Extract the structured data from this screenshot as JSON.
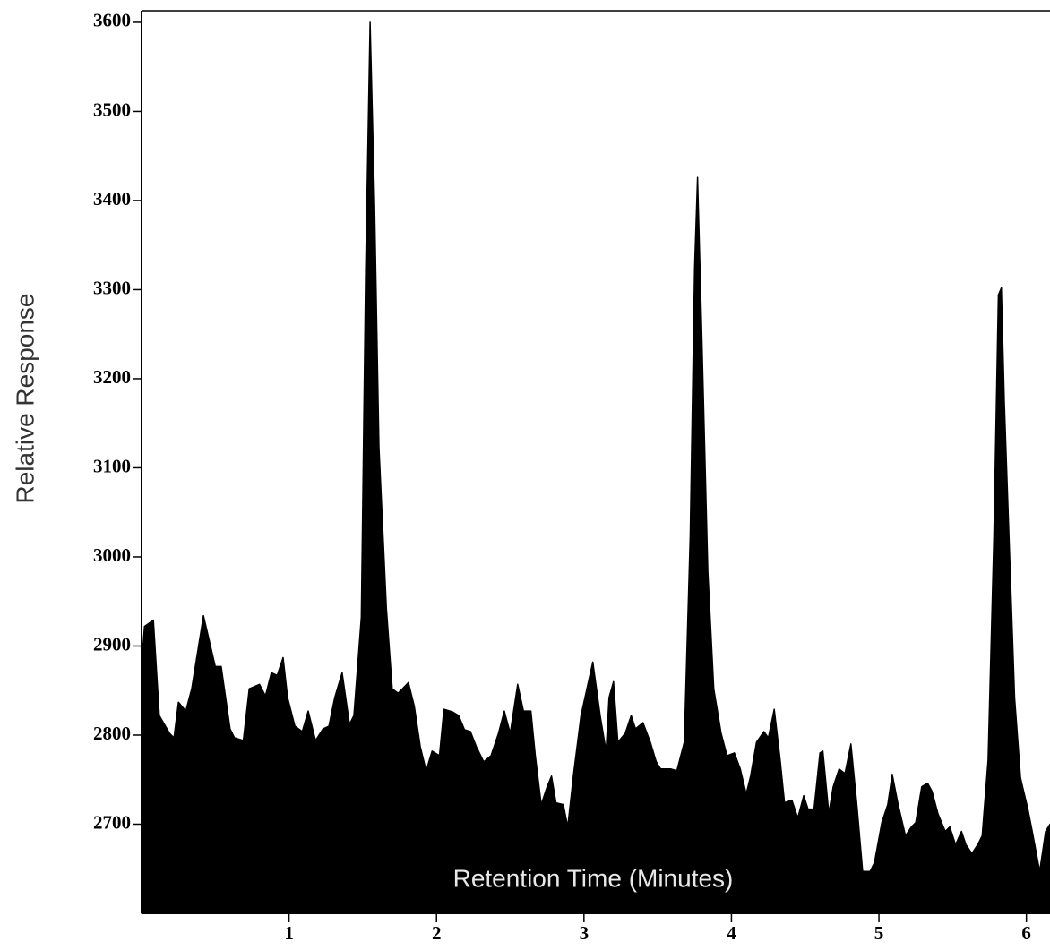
{
  "chart_data": {
    "type": "area",
    "x_label": "Retention Time (Minutes)",
    "y_label": "Relative Response",
    "color": "#000000",
    "xlim": [
      0,
      6.16
    ],
    "ylim": [
      2600,
      3613
    ],
    "xticks": [
      1,
      2,
      3,
      4,
      5,
      6
    ],
    "yticks": [
      2700,
      2800,
      2900,
      3000,
      3100,
      3200,
      3300,
      3400,
      3500,
      3600
    ],
    "x": [
      0,
      0.02,
      0.08,
      0.12,
      0.19,
      0.22,
      0.25,
      0.3,
      0.34,
      0.42,
      0.5,
      0.54,
      0.6,
      0.63,
      0.69,
      0.73,
      0.8,
      0.84,
      0.88,
      0.92,
      0.96,
      0.99,
      1.04,
      1.09,
      1.13,
      1.18,
      1.23,
      1.27,
      1.31,
      1.36,
      1.41,
      1.44,
      1.49,
      1.52,
      1.55,
      1.58,
      1.61,
      1.66,
      1.7,
      1.74,
      1.81,
      1.85,
      1.89,
      1.93,
      1.97,
      2.02,
      2.05,
      2.11,
      2.15,
      2.19,
      2.23,
      2.27,
      2.32,
      2.37,
      2.42,
      2.46,
      2.5,
      2.55,
      2.59,
      2.64,
      2.67,
      2.71,
      2.75,
      2.78,
      2.81,
      2.86,
      2.89,
      2.93,
      2.98,
      3.02,
      3.06,
      3.11,
      3.15,
      3.17,
      3.2,
      3.23,
      3.28,
      3.32,
      3.35,
      3.4,
      3.45,
      3.49,
      3.52,
      3.59,
      3.63,
      3.68,
      3.72,
      3.75,
      3.77,
      3.8,
      3.84,
      3.88,
      3.93,
      3.97,
      4.02,
      4.06,
      4.1,
      4.13,
      4.17,
      4.22,
      4.25,
      4.29,
      4.33,
      4.36,
      4.41,
      4.45,
      4.49,
      4.52,
      4.56,
      4.6,
      4.62,
      4.66,
      4.69,
      4.73,
      4.77,
      4.81,
      4.85,
      4.89,
      4.94,
      4.97,
      5.02,
      5.06,
      5.09,
      5.13,
      5.18,
      5.22,
      5.25,
      5.29,
      5.33,
      5.36,
      5.4,
      5.45,
      5.48,
      5.52,
      5.56,
      5.59,
      5.63,
      5.67,
      5.7,
      5.74,
      5.78,
      5.81,
      5.83,
      5.85,
      5.89,
      5.92,
      5.96,
      6.01,
      6.04,
      6.09,
      6.13,
      6.16
    ],
    "values": [
      2880,
      2922,
      2929,
      2822,
      2802,
      2797,
      2837,
      2827,
      2852,
      2934,
      2877,
      2877,
      2807,
      2797,
      2794,
      2852,
      2857,
      2844,
      2870,
      2867,
      2887,
      2842,
      2810,
      2804,
      2827,
      2794,
      2807,
      2810,
      2842,
      2870,
      2812,
      2822,
      2932,
      3324,
      3600,
      3394,
      3123,
      2942,
      2852,
      2847,
      2859,
      2832,
      2787,
      2760,
      2782,
      2777,
      2829,
      2826,
      2822,
      2806,
      2804,
      2787,
      2770,
      2777,
      2802,
      2827,
      2802,
      2857,
      2827,
      2827,
      2777,
      2722,
      2742,
      2754,
      2724,
      2722,
      2697,
      2757,
      2822,
      2852,
      2882,
      2822,
      2782,
      2842,
      2860,
      2792,
      2802,
      2822,
      2807,
      2814,
      2792,
      2770,
      2762,
      2762,
      2760,
      2792,
      3023,
      3324,
      3426,
      3243,
      2983,
      2852,
      2802,
      2777,
      2780,
      2762,
      2734,
      2754,
      2792,
      2804,
      2797,
      2829,
      2772,
      2724,
      2727,
      2707,
      2732,
      2717,
      2717,
      2780,
      2782,
      2712,
      2742,
      2762,
      2757,
      2790,
      2722,
      2647,
      2647,
      2657,
      2702,
      2722,
      2756,
      2722,
      2687,
      2697,
      2702,
      2742,
      2746,
      2737,
      2712,
      2692,
      2697,
      2677,
      2692,
      2677,
      2667,
      2677,
      2687,
      2772,
      3023,
      3294,
      3302,
      3174,
      2983,
      2842,
      2752,
      2717,
      2692,
      2647,
      2692,
      2700
    ]
  }
}
